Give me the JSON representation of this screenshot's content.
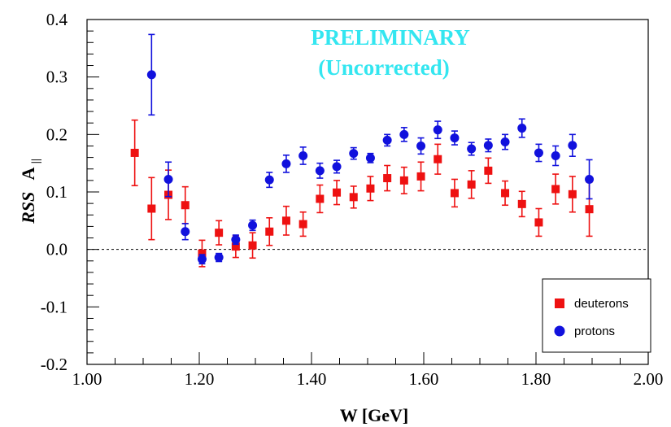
{
  "chart_data": {
    "type": "scatter",
    "title": "",
    "xlabel": "W [GeV]",
    "ylabel_main": "RSS",
    "ylabel_sub": "A",
    "ylabel_subscript": "||",
    "xlim": [
      1.0,
      2.0
    ],
    "ylim": [
      -0.2,
      0.4
    ],
    "x_ticks": [
      1.0,
      1.2,
      1.4,
      1.6,
      1.8,
      2.0
    ],
    "x_tick_labels": [
      "1.00",
      "1.20",
      "1.40",
      "1.60",
      "1.80",
      "2.00"
    ],
    "y_ticks": [
      -0.2,
      -0.1,
      0.0,
      0.1,
      0.2,
      0.3,
      0.4
    ],
    "y_tick_labels": [
      "-0.2",
      "-0.1",
      "0.0",
      "0.1",
      "0.2",
      "0.3",
      "0.4"
    ],
    "reference_line_y": 0.0,
    "grid": false,
    "annotations": [
      "PRELIMINARY",
      "(Uncorrected)"
    ],
    "legend_position": "bottom-right",
    "series": [
      {
        "name": "deuterons",
        "marker": "square",
        "color": "#ee1111",
        "x": [
          1.085,
          1.115,
          1.145,
          1.175,
          1.205,
          1.235,
          1.265,
          1.295,
          1.325,
          1.355,
          1.385,
          1.415,
          1.445,
          1.475,
          1.505,
          1.535,
          1.565,
          1.595,
          1.625,
          1.655,
          1.685,
          1.715,
          1.745,
          1.775,
          1.805,
          1.835,
          1.865,
          1.895
        ],
        "y": [
          0.168,
          0.071,
          0.095,
          0.077,
          -0.007,
          0.029,
          0.005,
          0.007,
          0.031,
          0.05,
          0.044,
          0.088,
          0.099,
          0.091,
          0.106,
          0.124,
          0.12,
          0.127,
          0.157,
          0.098,
          0.113,
          0.137,
          0.098,
          0.079,
          0.047,
          0.105,
          0.096,
          0.07
        ],
        "err": [
          0.057,
          0.054,
          0.043,
          0.032,
          0.023,
          0.021,
          0.019,
          0.022,
          0.024,
          0.025,
          0.021,
          0.024,
          0.021,
          0.019,
          0.021,
          0.022,
          0.023,
          0.025,
          0.026,
          0.024,
          0.024,
          0.022,
          0.021,
          0.022,
          0.024,
          0.026,
          0.031,
          0.047
        ]
      },
      {
        "name": "protons",
        "marker": "circle",
        "color": "#1111dd",
        "x": [
          1.115,
          1.145,
          1.175,
          1.205,
          1.235,
          1.265,
          1.295,
          1.325,
          1.355,
          1.385,
          1.415,
          1.445,
          1.475,
          1.505,
          1.535,
          1.565,
          1.595,
          1.625,
          1.655,
          1.685,
          1.715,
          1.745,
          1.775,
          1.805,
          1.835,
          1.865,
          1.895
        ],
        "y": [
          0.304,
          0.122,
          0.031,
          -0.017,
          -0.014,
          0.017,
          0.042,
          0.121,
          0.149,
          0.163,
          0.137,
          0.144,
          0.167,
          0.159,
          0.19,
          0.2,
          0.18,
          0.208,
          0.194,
          0.175,
          0.181,
          0.187,
          0.211,
          0.168,
          0.163,
          0.181,
          0.122
        ],
        "err": [
          0.07,
          0.03,
          0.014,
          0.008,
          0.007,
          0.008,
          0.009,
          0.013,
          0.015,
          0.015,
          0.013,
          0.011,
          0.01,
          0.008,
          0.01,
          0.012,
          0.014,
          0.015,
          0.012,
          0.011,
          0.011,
          0.013,
          0.016,
          0.015,
          0.017,
          0.019,
          0.034
        ]
      }
    ]
  }
}
